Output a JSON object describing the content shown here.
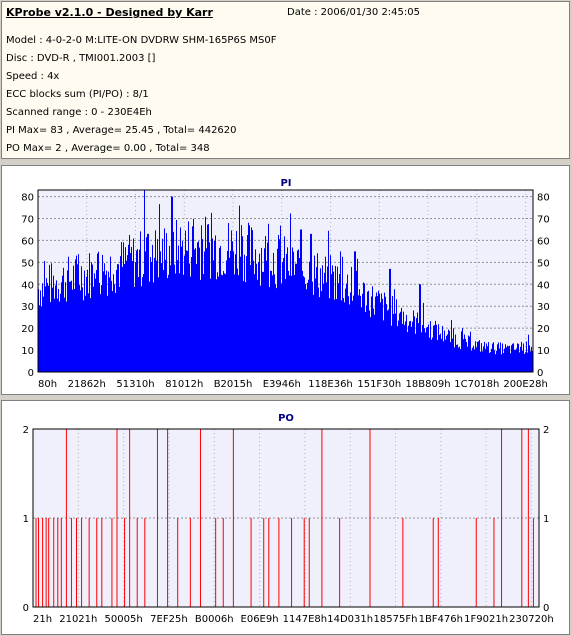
{
  "info": {
    "title": "KProbe v2.1.0 - Designed by Karr",
    "date": "Date : 2006/01/30 2:45:05",
    "lines": [
      "Model : 4-0-2-0 M:LITE-ON DVDRW SHM-165P6S MS0F",
      "Disc : DVD-R , TMI001.2003 []",
      "Speed : 4x",
      "ECC blocks sum (PI/PO) : 8/1",
      "Scanned range : 0 - 230E4Eh",
      "PI Max= 83 , Average= 25.45 , Total= 442620",
      "PO Max= 2 , Average= 0.00 , Total= 348"
    ]
  },
  "colors": {
    "pi_bar": "#0000ff",
    "po_bar": "#ff0000",
    "plot_bg": "#f0f0fc",
    "title": "#000080"
  },
  "chart_data": [
    {
      "type": "bar",
      "title": "PI",
      "x_tick_labels": [
        "80h",
        "21862h",
        "51310h",
        "81012h",
        "B2015h",
        "E3946h",
        "118E36h",
        "151F30h",
        "18B809h",
        "1C7018h",
        "200E28h"
      ],
      "ylim": [
        0,
        83
      ],
      "y_ticks": [
        0,
        10,
        20,
        30,
        40,
        50,
        60,
        70,
        80
      ],
      "grid": true,
      "envelope": [
        [
          0,
          40
        ],
        [
          0.05,
          44
        ],
        [
          0.1,
          47
        ],
        [
          0.15,
          50
        ],
        [
          0.2,
          54
        ],
        [
          0.25,
          57
        ],
        [
          0.3,
          60
        ],
        [
          0.35,
          60
        ],
        [
          0.4,
          59
        ],
        [
          0.45,
          56
        ],
        [
          0.5,
          52
        ],
        [
          0.55,
          48
        ],
        [
          0.6,
          44
        ],
        [
          0.65,
          38
        ],
        [
          0.7,
          31
        ],
        [
          0.75,
          25
        ],
        [
          0.8,
          20
        ],
        [
          0.85,
          15
        ],
        [
          0.9,
          12
        ],
        [
          0.95,
          11
        ],
        [
          1.0,
          12
        ]
      ],
      "peaks": [
        [
          0.214,
          83
        ],
        [
          0.222,
          63
        ],
        [
          0.27,
          80
        ],
        [
          0.41,
          67
        ],
        [
          0.53,
          65
        ],
        [
          0.55,
          63
        ],
        [
          0.61,
          55
        ],
        [
          0.64,
          55
        ],
        [
          0.71,
          47
        ],
        [
          0.77,
          40
        ],
        [
          0.99,
          17
        ]
      ]
    },
    {
      "type": "bar",
      "title": "PO",
      "x_tick_labels": [
        "21h",
        "21021h",
        "50005h",
        "7EF25h",
        "B0006h",
        "E06E9h",
        "1147E8h",
        "14D031h",
        "18575Fh",
        "1BF476h",
        "1F9021h",
        "230720h"
      ],
      "ylim": [
        0,
        2
      ],
      "y_ticks": [
        0,
        1,
        2
      ],
      "grid": true,
      "events": [
        [
          0.005,
          1
        ],
        [
          0.01,
          1
        ],
        [
          0.018,
          1
        ],
        [
          0.025,
          1
        ],
        [
          0.03,
          1
        ],
        [
          0.04,
          1
        ],
        [
          0.048,
          1
        ],
        [
          0.055,
          1
        ],
        [
          0.065,
          2
        ],
        [
          0.075,
          1
        ],
        [
          0.085,
          1
        ],
        [
          0.095,
          1
        ],
        [
          0.11,
          1
        ],
        [
          0.125,
          1
        ],
        [
          0.135,
          1
        ],
        [
          0.155,
          1
        ],
        [
          0.165,
          2
        ],
        [
          0.18,
          1
        ],
        [
          0.19,
          2
        ],
        [
          0.205,
          1
        ],
        [
          0.22,
          1
        ],
        [
          0.245,
          2
        ],
        [
          0.265,
          2
        ],
        [
          0.285,
          1
        ],
        [
          0.31,
          1
        ],
        [
          0.33,
          2
        ],
        [
          0.36,
          1
        ],
        [
          0.375,
          1
        ],
        [
          0.395,
          2
        ],
        [
          0.43,
          1
        ],
        [
          0.455,
          1
        ],
        [
          0.465,
          1
        ],
        [
          0.485,
          1
        ],
        [
          0.51,
          1
        ],
        [
          0.535,
          1
        ],
        [
          0.545,
          1
        ],
        [
          0.57,
          2
        ],
        [
          0.605,
          1
        ],
        [
          0.665,
          2
        ],
        [
          0.73,
          1
        ],
        [
          0.79,
          1
        ],
        [
          0.8,
          1
        ],
        [
          0.875,
          1
        ],
        [
          0.91,
          1
        ],
        [
          0.925,
          2
        ],
        [
          0.965,
          2
        ],
        [
          0.978,
          2
        ],
        [
          0.988,
          1
        ]
      ]
    }
  ]
}
